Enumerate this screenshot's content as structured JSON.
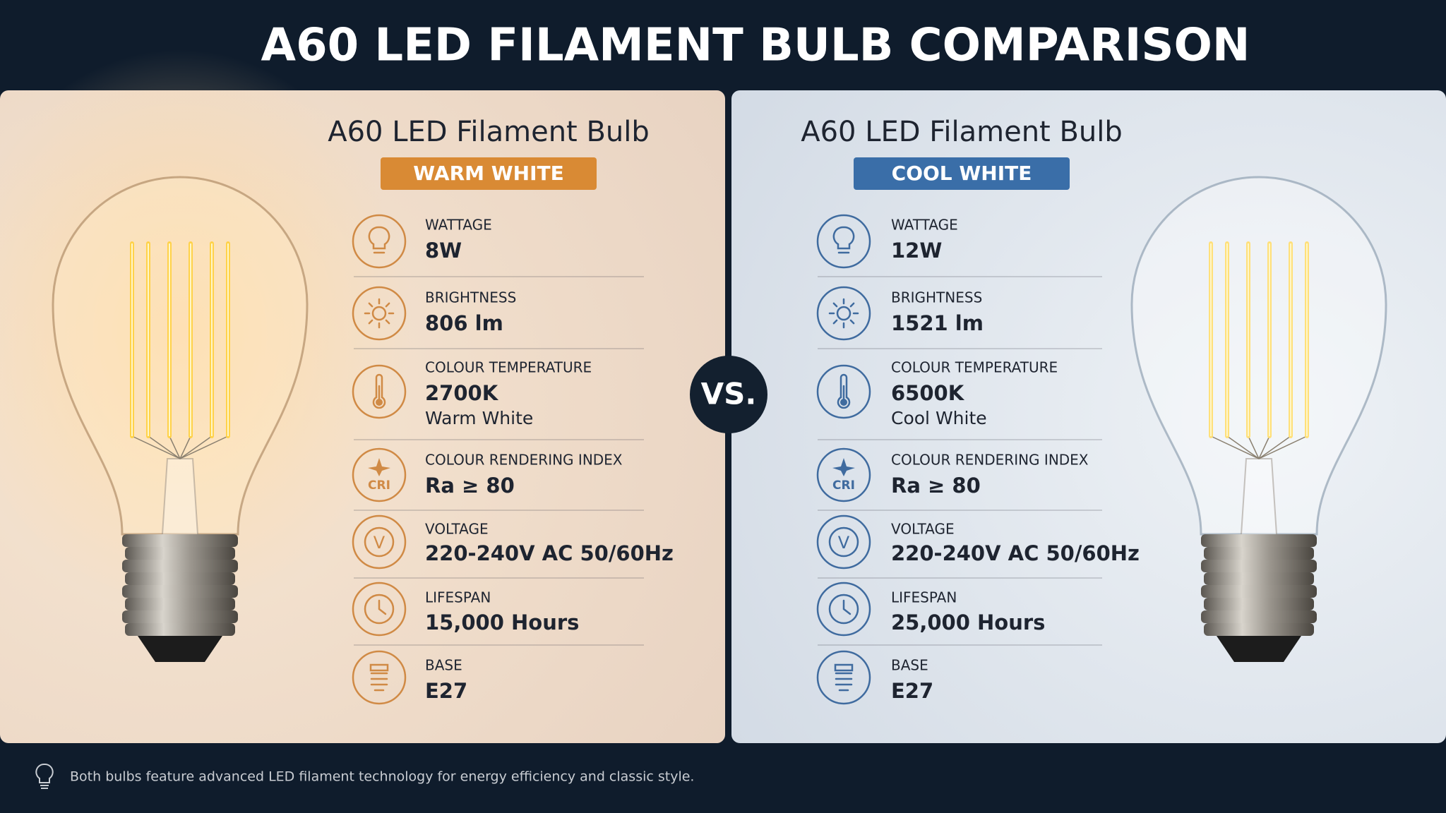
{
  "title": "A60 LED FILAMENT BULB COMPARISON",
  "vs": "VS.",
  "panels": [
    {
      "heading": "A60 LED Filament Bulb",
      "badge": "WARM WHITE",
      "specs": [
        {
          "label": "WATTAGE",
          "value": "8W"
        },
        {
          "label": "BRIGHTNESS",
          "value": "806 lm"
        },
        {
          "label": "COLOUR TEMPERATURE",
          "value": "2700K",
          "note": "Warm White"
        },
        {
          "label": "COLOUR RENDERING INDEX",
          "value": "Ra ≥ 80",
          "icon_label": "CRI"
        },
        {
          "label": "VOLTAGE",
          "value": "220-240V AC 50/60Hz",
          "icon_label": "V"
        },
        {
          "label": "LIFESPAN",
          "value": "15,000 Hours"
        },
        {
          "label": "BASE",
          "value": "E27"
        }
      ]
    },
    {
      "heading": "A60 LED Filament Bulb",
      "badge": "COOL WHITE",
      "specs": [
        {
          "label": "WATTAGE",
          "value": "12W"
        },
        {
          "label": "BRIGHTNESS",
          "value": "1521 lm"
        },
        {
          "label": "COLOUR TEMPERATURE",
          "value": "6500K",
          "note": "Cool White"
        },
        {
          "label": "COLOUR RENDERING INDEX",
          "value": "Ra ≥ 80",
          "icon_label": "CRI"
        },
        {
          "label": "VOLTAGE",
          "value": "220-240V AC 50/60Hz",
          "icon_label": "V"
        },
        {
          "label": "LIFESPAN",
          "value": "25,000 Hours"
        },
        {
          "label": "BASE",
          "value": "E27"
        }
      ]
    }
  ],
  "footer": "Both bulbs feature advanced LED filament technology for energy efficiency and classic style."
}
